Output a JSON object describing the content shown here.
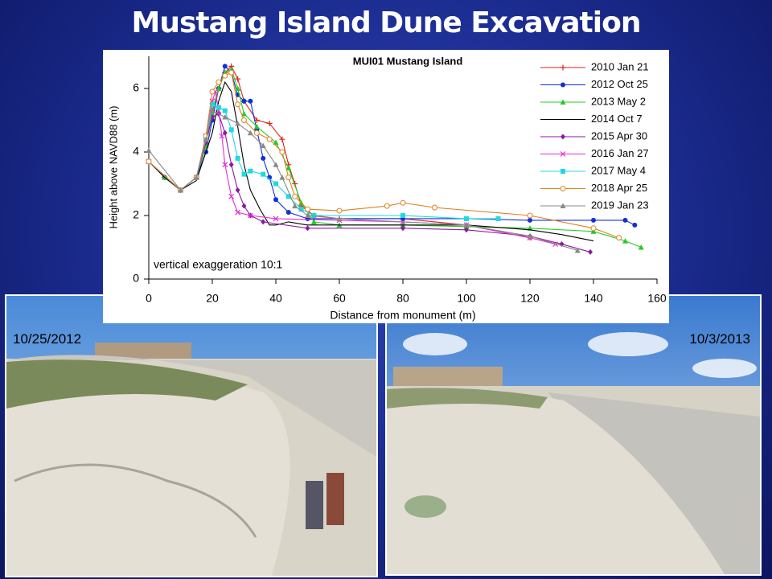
{
  "slide_title": "Mustang Island Dune Excavation",
  "photos": [
    {
      "caption": "10/25/2012"
    },
    {
      "caption": "10/3/2013"
    }
  ],
  "chart_data": {
    "type": "line",
    "title": "MUI01 Mustang Island",
    "x_label": "Distance from monument (m)",
    "y_label": "Height above NAVD88 (m)",
    "annotation": "vertical exaggeration 10:1",
    "xlim": [
      0,
      160
    ],
    "xticks": [
      0,
      20,
      40,
      60,
      80,
      100,
      120,
      140,
      160
    ],
    "ylim": [
      0,
      7
    ],
    "yticks": [
      0,
      2,
      4,
      6
    ],
    "legend": "upper right",
    "series": [
      {
        "name": "2010 Jan 21",
        "color": "#e0201c",
        "marker": "plus",
        "x": [
          0,
          5,
          10,
          15,
          18,
          20,
          22,
          24,
          26,
          28,
          30,
          34,
          38,
          42,
          44,
          46,
          48,
          52,
          60,
          80,
          100,
          120
        ],
        "values": [
          3.7,
          3.2,
          2.8,
          3.2,
          4.2,
          5.3,
          6.0,
          6.5,
          6.7,
          6.3,
          5.6,
          5.0,
          4.9,
          4.4,
          3.6,
          3.0,
          2.3,
          2.0,
          1.9,
          1.9,
          1.7,
          1.3
        ]
      },
      {
        "name": "2012 Oct 25",
        "color": "#1030d8",
        "marker": "circle",
        "x": [
          0,
          5,
          10,
          15,
          18,
          20,
          22,
          24,
          26,
          28,
          30,
          32,
          34,
          36,
          38,
          40,
          44,
          50,
          80,
          100,
          120,
          140,
          150,
          153
        ],
        "values": [
          3.7,
          3.2,
          2.8,
          3.2,
          4.0,
          5.0,
          6.0,
          6.7,
          6.5,
          5.8,
          5.6,
          5.6,
          4.7,
          3.8,
          3.2,
          2.5,
          2.1,
          1.9,
          1.9,
          1.9,
          1.85,
          1.85,
          1.85,
          1.7
        ]
      },
      {
        "name": "2013 May 2",
        "color": "#22cc22",
        "marker": "triangle",
        "x": [
          0,
          5,
          10,
          15,
          18,
          20,
          22,
          24,
          26,
          28,
          30,
          34,
          40,
          44,
          48,
          52,
          60,
          80,
          100,
          120,
          140,
          150,
          155
        ],
        "values": [
          3.7,
          3.2,
          2.8,
          3.2,
          4.2,
          5.2,
          6.0,
          6.5,
          6.6,
          6.0,
          5.2,
          4.8,
          4.3,
          3.5,
          2.4,
          1.8,
          1.7,
          1.7,
          1.65,
          1.6,
          1.5,
          1.2,
          1.0
        ]
      },
      {
        "name": "2014 Oct 7",
        "color": "#000000",
        "marker": "none",
        "x": [
          0,
          5,
          10,
          15,
          20,
          22,
          24,
          26,
          28,
          30,
          32,
          35,
          38,
          40,
          44,
          50,
          80,
          100,
          120,
          130,
          140
        ],
        "values": [
          3.7,
          3.2,
          2.8,
          3.1,
          4.6,
          5.6,
          6.2,
          5.9,
          4.8,
          3.6,
          2.8,
          2.2,
          1.7,
          1.7,
          1.8,
          1.7,
          1.7,
          1.7,
          1.55,
          1.4,
          1.2
        ]
      },
      {
        "name": "2015 Apr 30",
        "color": "#8a1aa0",
        "marker": "diamond",
        "x": [
          0,
          10,
          15,
          18,
          20,
          22,
          24,
          26,
          28,
          30,
          32,
          36,
          50,
          80,
          100,
          120,
          130,
          139
        ],
        "values": [
          3.7,
          2.8,
          3.2,
          4.3,
          5.1,
          5.2,
          4.6,
          3.6,
          2.8,
          2.3,
          2.0,
          1.8,
          1.6,
          1.6,
          1.55,
          1.35,
          1.1,
          0.85
        ]
      },
      {
        "name": "2016 Jan 27",
        "color": "#e030d0",
        "marker": "x",
        "x": [
          0,
          10,
          15,
          18,
          20,
          21,
          22,
          23,
          24,
          26,
          28,
          32,
          40,
          60,
          80,
          100,
          120,
          128
        ],
        "values": [
          3.7,
          2.8,
          3.2,
          4.5,
          5.6,
          5.9,
          5.3,
          4.5,
          3.6,
          2.6,
          2.1,
          2.0,
          1.9,
          1.85,
          1.8,
          1.7,
          1.3,
          1.1
        ]
      },
      {
        "name": "2017 May 4",
        "color": "#20d8e0",
        "marker": "square",
        "x": [
          0,
          10,
          15,
          18,
          20,
          22,
          24,
          26,
          28,
          30,
          32,
          36,
          40,
          44,
          48,
          52,
          80,
          100,
          110
        ],
        "values": [
          3.7,
          2.8,
          3.2,
          4.4,
          5.5,
          5.4,
          5.3,
          4.7,
          3.8,
          3.3,
          3.4,
          3.3,
          3.0,
          2.6,
          2.2,
          2.0,
          2.0,
          1.9,
          1.9
        ]
      },
      {
        "name": "2018 Apr 25",
        "color": "#e08020",
        "marker": "open-circle",
        "x": [
          0,
          10,
          15,
          18,
          20,
          22,
          24,
          26,
          28,
          30,
          34,
          38,
          42,
          44,
          46,
          50,
          60,
          75,
          80,
          90,
          120,
          140,
          148
        ],
        "values": [
          3.7,
          2.8,
          3.2,
          4.5,
          5.9,
          6.2,
          6.4,
          6.5,
          5.5,
          5.0,
          4.6,
          4.4,
          4.0,
          3.2,
          2.6,
          2.2,
          2.15,
          2.3,
          2.4,
          2.25,
          2.0,
          1.6,
          1.3
        ]
      },
      {
        "name": "2019 Jan 23",
        "color": "#888888",
        "marker": "triangle",
        "x": [
          0,
          10,
          15,
          18,
          20,
          24,
          28,
          32,
          36,
          40,
          42,
          46,
          50,
          60,
          100,
          120,
          135
        ],
        "values": [
          4.05,
          2.8,
          3.2,
          4.4,
          5.3,
          5.1,
          4.9,
          4.6,
          4.2,
          3.6,
          3.2,
          2.3,
          2.0,
          1.9,
          1.7,
          1.35,
          0.9
        ]
      }
    ]
  }
}
